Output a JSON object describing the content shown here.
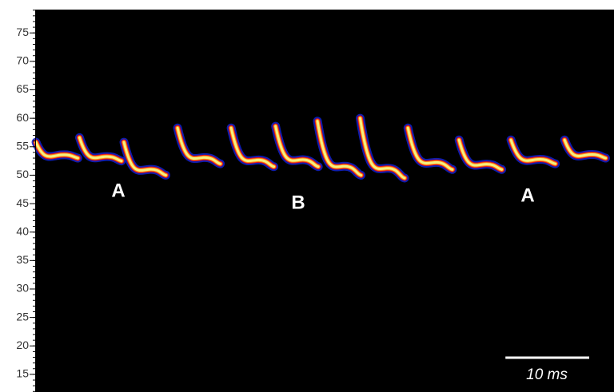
{
  "chart_data": {
    "type": "spectrogram",
    "ylim": [
      11.9,
      79.1
    ],
    "yticks": [
      15,
      20,
      25,
      30,
      35,
      40,
      45,
      50,
      55,
      60,
      65,
      70,
      75
    ],
    "xlim": [
      0,
      69
    ],
    "syllables": [
      {
        "onset": 0.0,
        "offset": 5.0,
        "start_freq": 55.8,
        "end_freq": 53
      },
      {
        "onset": 5.2,
        "offset": 10.2,
        "start_freq": 56.6,
        "end_freq": 52.5
      },
      {
        "onset": 10.5,
        "offset": 15.5,
        "start_freq": 55.8,
        "end_freq": 50
      },
      {
        "onset": 16.9,
        "offset": 22.0,
        "start_freq": 58.3,
        "end_freq": 52
      },
      {
        "onset": 23.3,
        "offset": 28.4,
        "start_freq": 58.3,
        "end_freq": 51.5
      },
      {
        "onset": 28.6,
        "offset": 33.7,
        "start_freq": 58.6,
        "end_freq": 51.5
      },
      {
        "onset": 33.6,
        "offset": 38.8,
        "start_freq": 59.5,
        "end_freq": 50
      },
      {
        "onset": 38.7,
        "offset": 44.0,
        "start_freq": 60,
        "end_freq": 49.5
      },
      {
        "onset": 44.4,
        "offset": 49.7,
        "start_freq": 58.3,
        "end_freq": 51
      },
      {
        "onset": 50.5,
        "offset": 55.6,
        "start_freq": 56.2,
        "end_freq": 51
      },
      {
        "onset": 56.7,
        "offset": 62.0,
        "start_freq": 56.2,
        "end_freq": 52
      },
      {
        "onset": 63.1,
        "offset": 68.0,
        "start_freq": 56.2,
        "end_freq": 53
      }
    ],
    "annotations": [
      "A",
      "B",
      "A"
    ],
    "scale_bar": {
      "value": 10,
      "label": "10 ms"
    }
  }
}
